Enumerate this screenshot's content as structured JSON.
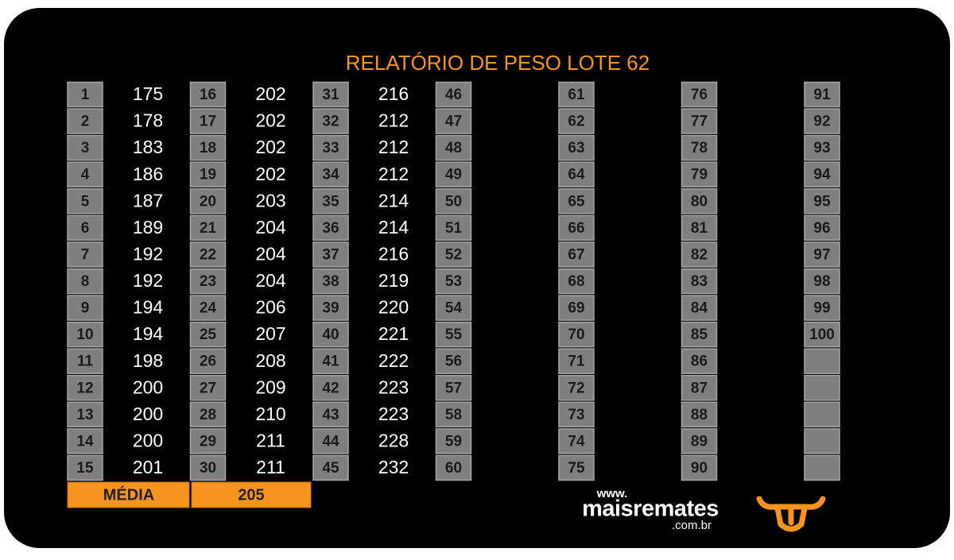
{
  "header": {
    "title": "RELATÓRIO DE PESO LOTE 62"
  },
  "table": {
    "groups": [
      {
        "numbers": [
          1,
          2,
          3,
          4,
          5,
          6,
          7,
          8,
          9,
          10,
          11,
          12,
          13,
          14,
          15
        ],
        "weights": [
          175,
          178,
          183,
          186,
          187,
          189,
          192,
          192,
          194,
          194,
          198,
          200,
          200,
          200,
          201
        ]
      },
      {
        "numbers": [
          16,
          17,
          18,
          19,
          20,
          21,
          22,
          23,
          24,
          25,
          26,
          27,
          28,
          29,
          30
        ],
        "weights": [
          202,
          202,
          202,
          202,
          203,
          204,
          204,
          204,
          206,
          207,
          208,
          209,
          210,
          211,
          211
        ]
      },
      {
        "numbers": [
          31,
          32,
          33,
          34,
          35,
          36,
          37,
          38,
          39,
          40,
          41,
          42,
          43,
          44,
          45
        ],
        "weights": [
          216,
          212,
          212,
          212,
          214,
          214,
          216,
          219,
          220,
          221,
          222,
          223,
          223,
          228,
          232
        ]
      },
      {
        "numbers": [
          46,
          47,
          48,
          49,
          50,
          51,
          52,
          53,
          54,
          55,
          56,
          57,
          58,
          59,
          60
        ],
        "weights": []
      },
      {
        "numbers": [
          61,
          62,
          63,
          64,
          65,
          66,
          67,
          68,
          69,
          70,
          71,
          72,
          73,
          74,
          75
        ],
        "weights": []
      },
      {
        "numbers": [
          76,
          77,
          78,
          79,
          80,
          81,
          82,
          83,
          84,
          85,
          86,
          87,
          88,
          89,
          90
        ],
        "weights": []
      },
      {
        "numbers": [
          91,
          92,
          93,
          94,
          95,
          96,
          97,
          98,
          99,
          100
        ],
        "weights": []
      }
    ]
  },
  "average": {
    "label": "MÉDIA",
    "value": 205
  },
  "logo": {
    "prefix": "www.",
    "name": "maisremates",
    "suffix": ".com.br"
  }
}
